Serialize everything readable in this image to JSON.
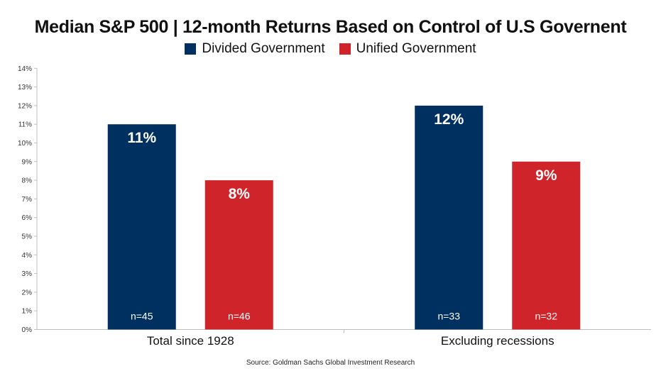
{
  "title": "Median S&P 500 | 12-month Returns Based on Control of U.S Governent",
  "source": "Source: Goldman Sachs Global Investment Research",
  "colors": {
    "divided": "#00305f",
    "unified": "#d0242b"
  },
  "chart_data": {
    "type": "bar",
    "title": "Median S&P 500 | 12-month Returns Based on Control of U.S Governent",
    "xlabel": "",
    "ylabel": "",
    "ylim": [
      0,
      14
    ],
    "y_ticks": [
      "0%",
      "1%",
      "2%",
      "3%",
      "4%",
      "5%",
      "6%",
      "7%",
      "8%",
      "9%",
      "10%",
      "11%",
      "12%",
      "13%",
      "14%"
    ],
    "categories": [
      "Total since 1928",
      "Excluding recessions"
    ],
    "series": [
      {
        "name": "Divided Government",
        "color": "#00305f",
        "values": [
          11,
          12
        ],
        "labels": [
          "11%",
          "12%"
        ],
        "counts": [
          "n=45",
          "n=33"
        ]
      },
      {
        "name": "Unified Government",
        "color": "#d0242b",
        "values": [
          8,
          9
        ],
        "labels": [
          "8%",
          "9%"
        ],
        "counts": [
          "n=46",
          "n=32"
        ]
      }
    ],
    "grid": false,
    "legend_position": "top-center"
  }
}
